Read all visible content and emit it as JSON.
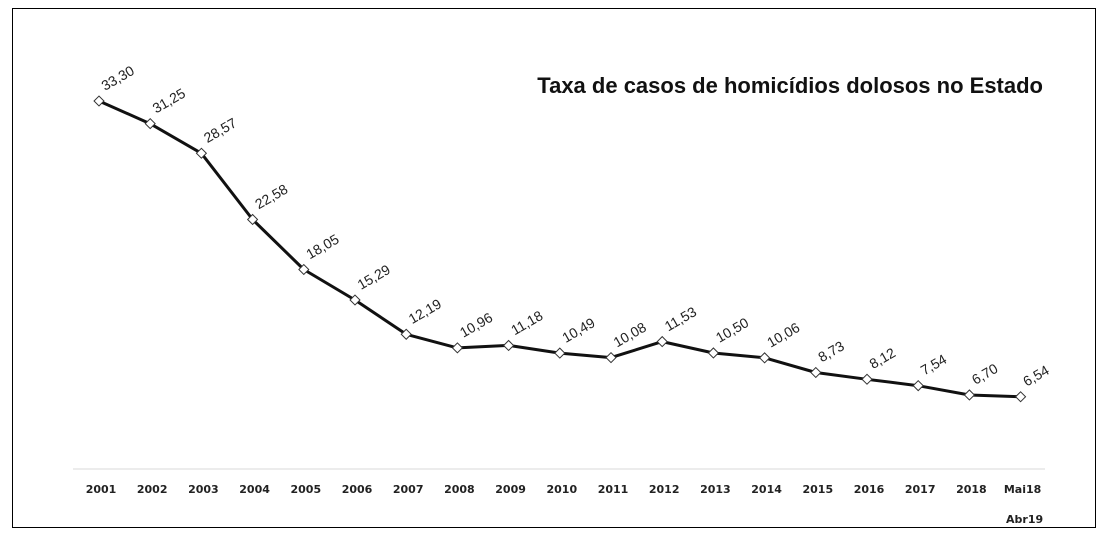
{
  "chart_data": {
    "type": "line",
    "title": "Taxa de casos de homicídios dolosos no Estado",
    "categories": [
      "2001",
      "2002",
      "2003",
      "2004",
      "2005",
      "2006",
      "2007",
      "2008",
      "2009",
      "2010",
      "2011",
      "2012",
      "2013",
      "2014",
      "2015",
      "2016",
      "2017",
      "2018",
      "Mai18"
    ],
    "extra_axis_note": "Abr19",
    "series": [
      {
        "values": [
          33.3,
          31.25,
          28.57,
          22.58,
          18.05,
          15.29,
          12.19,
          10.96,
          11.18,
          10.49,
          10.08,
          11.53,
          10.5,
          10.06,
          8.73,
          8.12,
          7.54,
          6.7,
          6.54
        ],
        "labels": [
          "33,30",
          "31,25",
          "28,57",
          "22,58",
          "18,05",
          "15,29",
          "12,19",
          "10,96",
          "11,18",
          "10,49",
          "10,08",
          "11,53",
          "10,50",
          "10,06",
          "8,73",
          "8,12",
          "7,54",
          "6,70",
          "6,54"
        ]
      }
    ],
    "grid": false,
    "legend": "none",
    "colors": {
      "line": "#111111",
      "marker_fill": "#ffffff",
      "marker_stroke": "#333333",
      "axis": "#d9d9d9"
    }
  }
}
